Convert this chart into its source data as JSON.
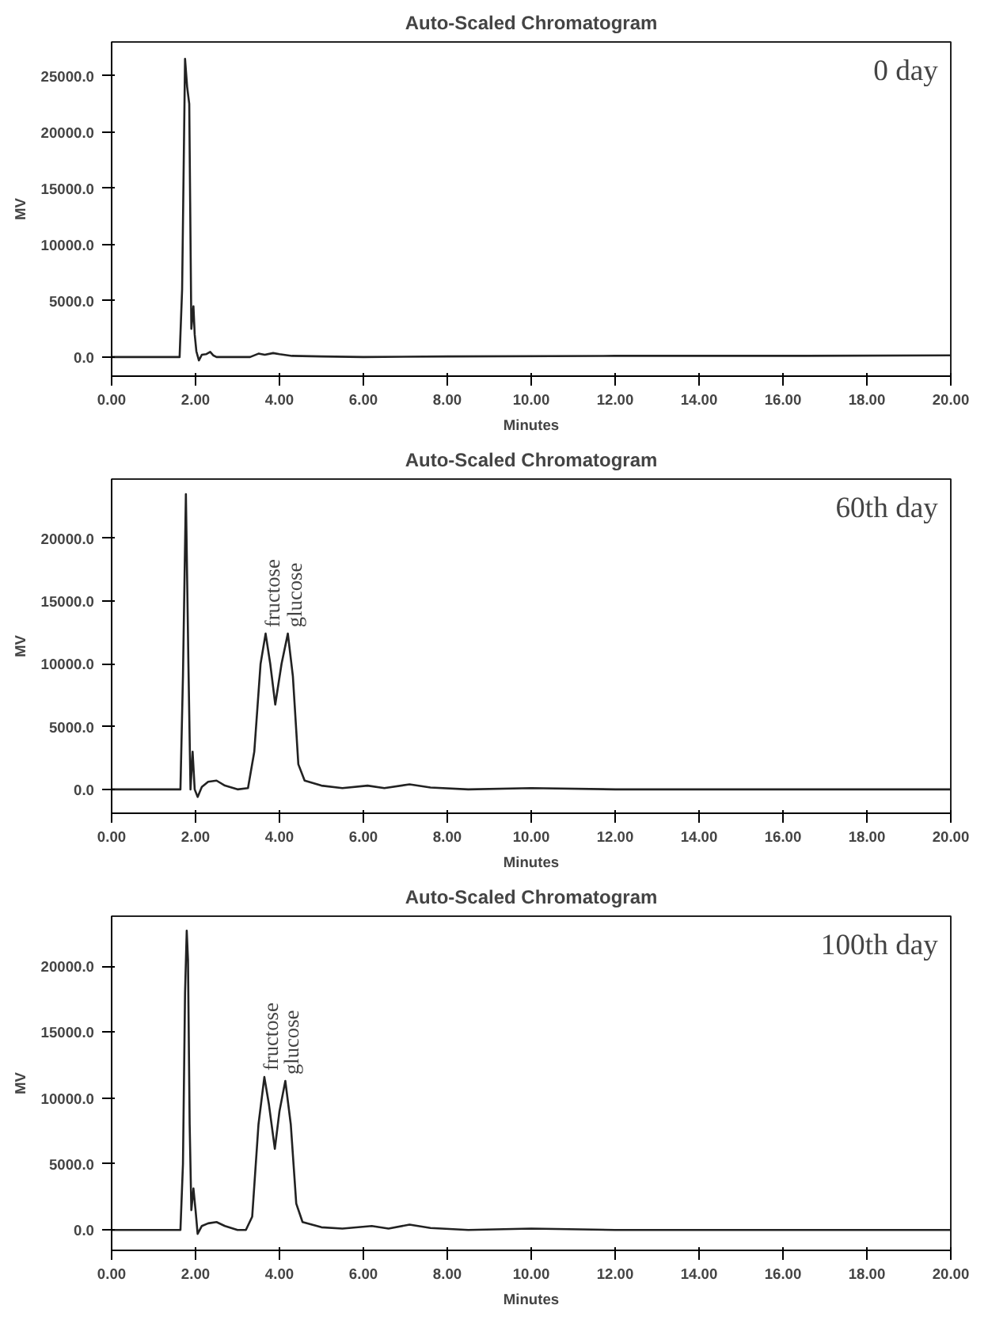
{
  "chart_data": [
    {
      "type": "line",
      "title": "Auto-Scaled Chromatogram",
      "xlabel": "Minutes",
      "ylabel": "MV",
      "grid": false,
      "x": [
        0,
        1.0,
        1.62,
        1.68,
        1.75,
        1.8,
        1.85,
        1.9,
        1.95,
        1.98,
        2.02,
        2.08,
        2.15,
        2.25,
        2.35,
        2.42,
        2.5,
        3.0,
        3.3,
        3.5,
        3.65,
        3.85,
        4.0,
        4.3,
        5.0,
        6.0,
        8.0,
        12.0,
        16.0,
        20.0
      ],
      "series": [
        {
          "color": "#222222",
          "values": [
            0,
            0,
            0,
            6000,
            26500,
            24000,
            22500,
            2500,
            4500,
            2000,
            500,
            -300,
            200,
            250,
            450,
            150,
            0,
            0,
            0,
            300,
            200,
            350,
            250,
            100,
            50,
            0,
            50,
            100,
            100,
            150
          ]
        }
      ],
      "xlim": [
        0,
        20
      ],
      "ylim": [
        -1700,
        28000
      ],
      "xticks": [
        {
          "value": 0,
          "label": "0.00"
        },
        {
          "value": 2,
          "label": "2.00"
        },
        {
          "value": 4,
          "label": "4.00"
        },
        {
          "value": 6,
          "label": "6.00"
        },
        {
          "value": 8,
          "label": "8.00"
        },
        {
          "value": 10,
          "label": "10.00"
        },
        {
          "value": 12,
          "label": "12.00"
        },
        {
          "value": 14,
          "label": "14.00"
        },
        {
          "value": 16,
          "label": "16.00"
        },
        {
          "value": 18,
          "label": "18.00"
        },
        {
          "value": 20,
          "label": "20.00"
        }
      ],
      "yticks": [
        {
          "value": 0,
          "label": "0.0"
        },
        {
          "value": 5000,
          "label": "5000.0"
        },
        {
          "value": 10000,
          "label": "10000.0"
        },
        {
          "value": 15000,
          "label": "15000.0"
        },
        {
          "value": 20000,
          "label": "20000.0"
        },
        {
          "value": 25000,
          "label": "25000.0"
        }
      ],
      "annotations": [
        "0 day"
      ]
    },
    {
      "type": "line",
      "title": "Auto-Scaled Chromatogram",
      "xlabel": "Minutes",
      "ylabel": "MV",
      "grid": false,
      "x": [
        0,
        1.0,
        1.64,
        1.7,
        1.77,
        1.83,
        1.88,
        1.93,
        1.98,
        2.05,
        2.15,
        2.3,
        2.5,
        2.7,
        3.0,
        3.25,
        3.4,
        3.55,
        3.67,
        3.78,
        3.9,
        4.05,
        4.2,
        4.32,
        4.45,
        4.6,
        5.0,
        5.5,
        6.1,
        6.5,
        7.1,
        7.6,
        8.5,
        10.0,
        12.0,
        16.0,
        20.0
      ],
      "series": [
        {
          "color": "#222222",
          "values": [
            0,
            0,
            0,
            9000,
            23500,
            10000,
            0,
            3000,
            0,
            -600,
            200,
            600,
            700,
            300,
            0,
            100,
            3000,
            10000,
            12400,
            10000,
            6750,
            10000,
            12400,
            9000,
            2000,
            700,
            300,
            100,
            300,
            100,
            400,
            150,
            0,
            100,
            0,
            0,
            0
          ]
        }
      ],
      "xlim": [
        0,
        20
      ],
      "ylim": [
        -1900,
        24700
      ],
      "xticks": [
        {
          "value": 0,
          "label": "0.00"
        },
        {
          "value": 2,
          "label": "2.00"
        },
        {
          "value": 4,
          "label": "4.00"
        },
        {
          "value": 6,
          "label": "6.00"
        },
        {
          "value": 8,
          "label": "8.00"
        },
        {
          "value": 10,
          "label": "10.00"
        },
        {
          "value": 12,
          "label": "12.00"
        },
        {
          "value": 14,
          "label": "14.00"
        },
        {
          "value": 16,
          "label": "16.00"
        },
        {
          "value": 18,
          "label": "18.00"
        },
        {
          "value": 20,
          "label": "20.00"
        }
      ],
      "yticks": [
        {
          "value": 0,
          "label": "0.0"
        },
        {
          "value": 5000,
          "label": "5000.0"
        },
        {
          "value": 10000,
          "label": "10000.0"
        },
        {
          "value": 15000,
          "label": "15000.0"
        },
        {
          "value": 20000,
          "label": "20000.0"
        }
      ],
      "annotations": [
        "60th day",
        {
          "text": "fructose",
          "x": 3.67,
          "y": 12400
        },
        {
          "text": "glucose",
          "x": 4.2,
          "y": 12400
        }
      ]
    },
    {
      "type": "line",
      "title": "Auto-Scaled Chromatogram",
      "xlabel": "Minutes",
      "ylabel": "MV",
      "grid": false,
      "x": [
        0,
        1.0,
        1.64,
        1.7,
        1.75,
        1.79,
        1.82,
        1.86,
        1.9,
        1.95,
        2.0,
        2.05,
        2.15,
        2.3,
        2.5,
        2.7,
        3.0,
        3.2,
        3.35,
        3.5,
        3.64,
        3.75,
        3.89,
        4.0,
        4.14,
        4.27,
        4.4,
        4.55,
        5.0,
        5.5,
        6.2,
        6.6,
        7.1,
        7.6,
        8.5,
        10.0,
        12.0,
        16.0,
        20.0
      ],
      "series": [
        {
          "color": "#222222",
          "values": [
            0,
            0,
            0,
            5000,
            18000,
            22700,
            20500,
            8000,
            1500,
            3150,
            1500,
            -300,
            300,
            500,
            600,
            300,
            0,
            0,
            1000,
            8000,
            11600,
            9500,
            6150,
            9000,
            11300,
            8000,
            2000,
            600,
            200,
            100,
            300,
            100,
            400,
            150,
            0,
            100,
            0,
            0,
            0
          ]
        }
      ],
      "xlim": [
        0,
        20
      ],
      "ylim": [
        -1550,
        23800
      ],
      "xticks": [
        {
          "value": 0,
          "label": "0.00"
        },
        {
          "value": 2,
          "label": "2.00"
        },
        {
          "value": 4,
          "label": "4.00"
        },
        {
          "value": 6,
          "label": "6.00"
        },
        {
          "value": 8,
          "label": "8.00"
        },
        {
          "value": 10,
          "label": "10.00"
        },
        {
          "value": 12,
          "label": "12.00"
        },
        {
          "value": 14,
          "label": "14.00"
        },
        {
          "value": 16,
          "label": "16.00"
        },
        {
          "value": 18,
          "label": "18.00"
        },
        {
          "value": 20,
          "label": "20.00"
        }
      ],
      "yticks": [
        {
          "value": 0,
          "label": "0.0"
        },
        {
          "value": 5000,
          "label": "5000.0"
        },
        {
          "value": 10000,
          "label": "10000.0"
        },
        {
          "value": 15000,
          "label": "15000.0"
        },
        {
          "value": 20000,
          "label": "20000.0"
        }
      ],
      "annotations": [
        "100th day",
        {
          "text": "fructose",
          "x": 3.64,
          "y": 11600
        },
        {
          "text": "glucose",
          "x": 4.14,
          "y": 11300
        }
      ]
    }
  ]
}
